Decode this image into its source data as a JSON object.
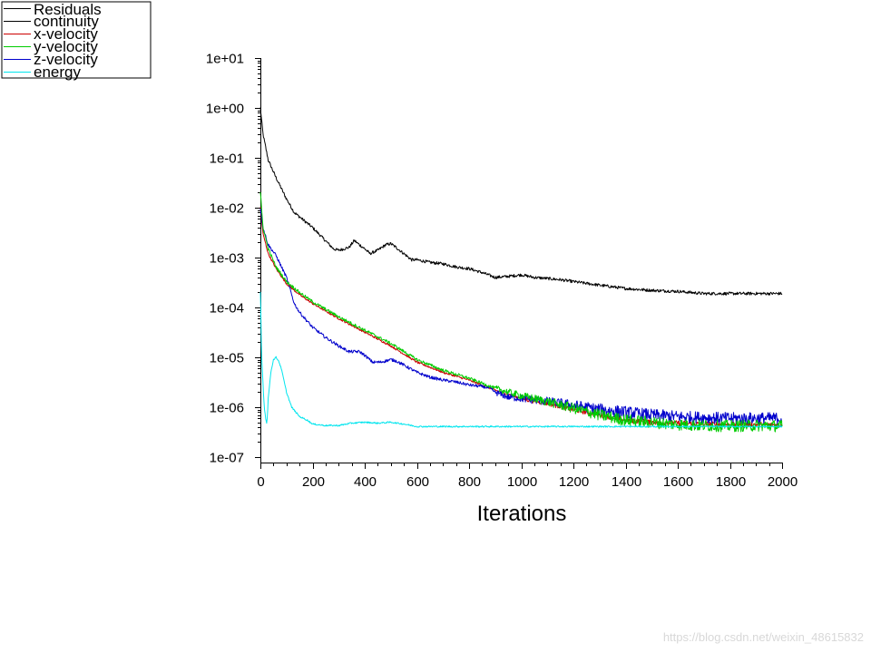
{
  "chart_data": {
    "type": "line",
    "title": "",
    "xlabel": "Iterations",
    "ylabel": "",
    "x_scale": "linear",
    "y_scale": "log",
    "xlim": [
      0,
      2000
    ],
    "ylim": [
      1e-07,
      10
    ],
    "x_ticks": [
      "0",
      "200",
      "400",
      "600",
      "800",
      "1000",
      "1200",
      "1400",
      "1600",
      "1800",
      "2000"
    ],
    "y_ticks": [
      "1e-07",
      "1e-06",
      "1e-05",
      "1e-04",
      "1e-03",
      "1e-02",
      "1e-01",
      "1e+00",
      "1e+01"
    ],
    "grid": false,
    "legend_title": "Residuals",
    "legend_position": "top-left",
    "series": [
      {
        "name": "continuity",
        "color": "#000000",
        "x": [
          0,
          10,
          30,
          60,
          100,
          130,
          200,
          280,
          300,
          340,
          360,
          380,
          400,
          420,
          450,
          480,
          500,
          520,
          550,
          580,
          600,
          650,
          700,
          750,
          800,
          850,
          900,
          950,
          1000,
          1050,
          1100,
          1150,
          1200,
          1300,
          1400,
          1500,
          1600,
          1700,
          1800,
          1900,
          2000
        ],
        "values": [
          1.0,
          0.3,
          0.09,
          0.04,
          0.015,
          0.008,
          0.004,
          0.0015,
          0.0014,
          0.0016,
          0.0022,
          0.0018,
          0.0015,
          0.0012,
          0.0014,
          0.0018,
          0.0019,
          0.0016,
          0.0012,
          0.0009,
          0.0009,
          0.0008,
          0.00075,
          0.00065,
          0.0006,
          0.0005,
          0.0004,
          0.00042,
          0.00045,
          0.0004,
          0.00038,
          0.00036,
          0.00033,
          0.00028,
          0.00024,
          0.00022,
          0.00021,
          0.00019,
          0.00019,
          0.00019,
          0.00019
        ]
      },
      {
        "name": "x-velocity",
        "color": "#cc0000",
        "x": [
          0,
          10,
          30,
          60,
          100,
          150,
          200,
          300,
          400,
          500,
          600,
          700,
          800,
          900,
          1000,
          1100,
          1200,
          1300,
          1400,
          1500,
          1600,
          1700,
          1800,
          1900,
          2000
        ],
        "values": [
          0.01,
          0.003,
          0.0012,
          0.0006,
          0.0003,
          0.00018,
          0.00012,
          6e-05,
          3.2e-05,
          1.7e-05,
          8e-06,
          5e-06,
          3.5e-06,
          2.2e-06,
          1.5e-06,
          1.2e-06,
          9e-07,
          7e-07,
          5.5e-07,
          5e-07,
          4.8e-07,
          4.6e-07,
          4.5e-07,
          4.5e-07,
          4.4e-07
        ]
      },
      {
        "name": "y-velocity",
        "color": "#00cc00",
        "x": [
          0,
          10,
          30,
          60,
          100,
          150,
          200,
          300,
          400,
          500,
          600,
          700,
          800,
          900,
          1000,
          1100,
          1200,
          1300,
          1400,
          1500,
          1600,
          1700,
          1800,
          1900,
          2000
        ],
        "values": [
          0.02,
          0.004,
          0.0015,
          0.00065,
          0.00033,
          0.0002,
          0.00013,
          6.5e-05,
          3.5e-05,
          1.9e-05,
          9e-06,
          5.5e-06,
          3.8e-06,
          2.4e-06,
          1.7e-06,
          1.3e-06,
          9.5e-07,
          7e-07,
          5.5e-07,
          5e-07,
          4.5e-07,
          4.3e-07,
          4.2e-07,
          4.3e-07,
          4.2e-07
        ]
      },
      {
        "name": "z-velocity",
        "color": "#0000cc",
        "x": [
          0,
          10,
          30,
          60,
          100,
          130,
          150,
          200,
          250,
          300,
          340,
          360,
          380,
          400,
          430,
          460,
          500,
          520,
          550,
          600,
          650,
          700,
          750,
          800,
          850,
          880,
          900,
          950,
          1000,
          1050,
          1100,
          1150,
          1200,
          1300,
          1400,
          1500,
          1600,
          1700,
          1800,
          1900,
          2000
        ],
        "values": [
          0.01,
          0.004,
          0.0018,
          0.0011,
          0.0004,
          0.00012,
          8e-05,
          4e-05,
          2.5e-05,
          1.7e-05,
          1.3e-05,
          1.3e-05,
          1.3e-05,
          1.1e-05,
          8e-06,
          8e-06,
          9e-06,
          8.5e-06,
          7e-06,
          5e-06,
          4e-06,
          3.5e-06,
          3.2e-06,
          2.8e-06,
          2.6e-06,
          2.4e-06,
          2e-06,
          1.6e-06,
          1.5e-06,
          1.4e-06,
          1.3e-06,
          1.2e-06,
          1.1e-06,
          9e-07,
          8e-07,
          7e-07,
          6.5e-07,
          6.2e-07,
          6e-07,
          6e-07,
          6e-07
        ]
      },
      {
        "name": "energy",
        "color": "#00e5ee",
        "x": [
          0,
          5,
          10,
          15,
          20,
          25,
          30,
          40,
          50,
          60,
          70,
          80,
          90,
          100,
          120,
          150,
          180,
          200,
          250,
          300,
          350,
          400,
          450,
          500,
          550,
          600,
          800,
          1000,
          1200,
          1400,
          1600,
          1800,
          2000
        ],
        "values": [
          0.0002,
          1e-05,
          3e-06,
          1e-06,
          6e-07,
          4.7e-07,
          1.5e-06,
          5e-06,
          9e-06,
          1e-05,
          8.5e-06,
          6e-06,
          3.5e-06,
          2e-06,
          1e-06,
          6.5e-07,
          5.5e-07,
          4.6e-07,
          4.3e-07,
          4.3e-07,
          4.8e-07,
          5e-07,
          4.8e-07,
          5e-07,
          4.6e-07,
          4.1e-07,
          4.1e-07,
          4.1e-07,
          4.1e-07,
          4.1e-07,
          4.1e-07,
          4.1e-07,
          4.1e-07
        ]
      }
    ]
  },
  "watermark": "https://blog.csdn.net/weixin_48615832"
}
